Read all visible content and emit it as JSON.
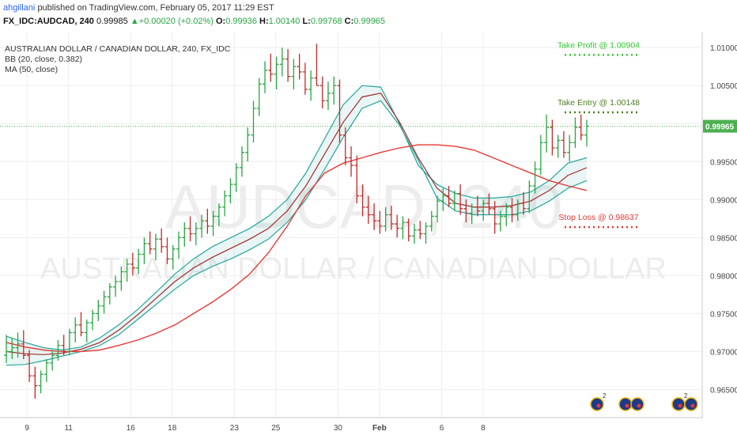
{
  "header": {
    "user": "ahgillani",
    "published": "published on TradingView.com, February 05, 2017 11:29 EST",
    "symbol": "FX_IDC:AUDCAD, 240",
    "last": "0.99985",
    "change": "+0.00020 (+0.02%)",
    "o_label": "O:",
    "o_val": "0.99936",
    "h_label": "H:",
    "h_val": "1.00140",
    "l_label": "L:",
    "l_val": "0.99768",
    "c_label": "C:",
    "c_val": "0.99965",
    "up_icon": "triangle-up-icon"
  },
  "legend": {
    "title": "AUSTRALIAN DOLLAR / CANADIAN DOLLAR, 240, FX_IDC",
    "bb": "BB (20, close, 0.382)",
    "ma": "MA (50, close)"
  },
  "watermark": {
    "big": "AUDCAD, 240",
    "small": "AUSTRALIAN DOLLAR / CANADIAN DOLLAR"
  },
  "colors": {
    "up": "#26a641",
    "down": "#c62828",
    "bb_outer": "#26a69a",
    "bb_mid": "#a52a2a",
    "ma": "#e53935",
    "take_profit": "#2ecc2e",
    "take_entry": "#4e7d1f",
    "stop_loss": "#e53935",
    "price_tag": "#4caf50"
  },
  "annotations": [
    {
      "label": "Take Profit @ 1.00904",
      "price": 1.00904,
      "color": "take_profit"
    },
    {
      "label": "Take Entry @ 1.00148",
      "price": 1.00148,
      "color": "take_entry"
    },
    {
      "label": "Stop Loss @ 0.98637",
      "price": 0.98637,
      "color": "stop_loss"
    }
  ],
  "price_tag": "0.99965",
  "chart_data": {
    "type": "ohlc",
    "title": "AUSTRALIAN DOLLAR / CANADIAN DOLLAR, 240, FX_IDC",
    "xlabel": "",
    "ylabel": "",
    "ylim": [
      0.9613,
      1.0121
    ],
    "y_ticks": [
      "1.01000",
      "1.00500",
      "1.00000",
      "0.99500",
      "0.99000",
      "0.98500",
      "0.98000",
      "0.97500",
      "0.97000",
      "0.96500"
    ],
    "x_ticks": [
      "9",
      "11",
      "16",
      "18",
      "23",
      "25",
      "30",
      "Feb",
      "6",
      "8"
    ],
    "grid": true,
    "current_price": 0.99965,
    "bars": [
      [
        0.9695,
        0.9722,
        0.9685,
        0.97
      ],
      [
        0.97,
        0.9718,
        0.969,
        0.9705
      ],
      [
        0.9705,
        0.9725,
        0.9692,
        0.971
      ],
      [
        0.971,
        0.9728,
        0.969,
        0.9695
      ],
      [
        0.9695,
        0.9702,
        0.966,
        0.9668
      ],
      [
        0.9668,
        0.968,
        0.9638,
        0.9655
      ],
      [
        0.9655,
        0.9675,
        0.9645,
        0.967
      ],
      [
        0.967,
        0.969,
        0.966,
        0.9685
      ],
      [
        0.9685,
        0.9702,
        0.9675,
        0.9695
      ],
      [
        0.9695,
        0.9715,
        0.9688,
        0.9708
      ],
      [
        0.9708,
        0.9722,
        0.9695,
        0.97
      ],
      [
        0.97,
        0.973,
        0.9695,
        0.9725
      ],
      [
        0.9725,
        0.9745,
        0.9712,
        0.9735
      ],
      [
        0.9735,
        0.9752,
        0.972,
        0.9725
      ],
      [
        0.9725,
        0.9742,
        0.9712,
        0.9738
      ],
      [
        0.9738,
        0.9755,
        0.9728,
        0.975
      ],
      [
        0.975,
        0.9768,
        0.974,
        0.976
      ],
      [
        0.976,
        0.978,
        0.975,
        0.9772
      ],
      [
        0.9772,
        0.979,
        0.9762,
        0.9785
      ],
      [
        0.9785,
        0.98,
        0.9772,
        0.9792
      ],
      [
        0.9792,
        0.9812,
        0.978,
        0.9805
      ],
      [
        0.9805,
        0.9822,
        0.9792,
        0.9815
      ],
      [
        0.9815,
        0.983,
        0.98,
        0.981
      ],
      [
        0.981,
        0.9835,
        0.9802,
        0.9828
      ],
      [
        0.9828,
        0.985,
        0.9815,
        0.9842
      ],
      [
        0.9842,
        0.9858,
        0.9828,
        0.9835
      ],
      [
        0.9835,
        0.9855,
        0.982,
        0.9848
      ],
      [
        0.9848,
        0.9862,
        0.983,
        0.9838
      ],
      [
        0.9838,
        0.985,
        0.9815,
        0.9822
      ],
      [
        0.9822,
        0.984,
        0.9808,
        0.9835
      ],
      [
        0.9835,
        0.9858,
        0.9822,
        0.985
      ],
      [
        0.985,
        0.987,
        0.9838,
        0.9862
      ],
      [
        0.9862,
        0.9878,
        0.9845,
        0.9855
      ],
      [
        0.9855,
        0.987,
        0.984,
        0.9862
      ],
      [
        0.9862,
        0.988,
        0.985,
        0.9872
      ],
      [
        0.9872,
        0.9888,
        0.9855,
        0.9865
      ],
      [
        0.9865,
        0.9885,
        0.9852,
        0.9878
      ],
      [
        0.9878,
        0.9895,
        0.9865,
        0.989
      ],
      [
        0.989,
        0.9912,
        0.9878,
        0.9905
      ],
      [
        0.9905,
        0.9928,
        0.9895,
        0.992
      ],
      [
        0.992,
        0.9948,
        0.991,
        0.9942
      ],
      [
        0.9942,
        0.997,
        0.993,
        0.9962
      ],
      [
        0.9962,
        0.9995,
        0.995,
        0.9985
      ],
      [
        0.9985,
        1.003,
        0.9975,
        1.002
      ],
      [
        1.002,
        1.006,
        1.001,
        1.0052
      ],
      [
        1.0052,
        1.0082,
        1.004,
        1.007
      ],
      [
        1.007,
        1.0092,
        1.0055,
        1.0065
      ],
      [
        1.0065,
        1.0088,
        1.0045,
        1.0078
      ],
      [
        1.0078,
        1.01,
        1.0062,
        1.0085
      ],
      [
        1.0085,
        1.0098,
        1.0055,
        1.0062
      ],
      [
        1.0062,
        1.0085,
        1.0045,
        1.0075
      ],
      [
        1.0075,
        1.0092,
        1.0058,
        1.0068
      ],
      [
        1.0068,
        1.008,
        1.0038,
        1.0045
      ],
      [
        1.0045,
        1.007,
        1.003,
        1.006
      ],
      [
        1.006,
        1.0105,
        1.005,
        1.005
      ],
      [
        1.005,
        1.0062,
        1.002,
        1.003
      ],
      [
        1.003,
        1.0055,
        1.0018,
        1.004
      ],
      [
        1.004,
        1.0062,
        1.0025,
        1.005
      ],
      [
        1.005,
        1.0058,
        0.9975,
        0.9985
      ],
      [
        0.9985,
        0.9995,
        0.9945,
        0.9955
      ],
      [
        0.9955,
        0.997,
        0.993,
        0.9945
      ],
      [
        0.9945,
        0.9958,
        0.9895,
        0.9905
      ],
      [
        0.9905,
        0.992,
        0.9878,
        0.989
      ],
      [
        0.989,
        0.9905,
        0.9868,
        0.988
      ],
      [
        0.988,
        0.9895,
        0.986,
        0.9872
      ],
      [
        0.9872,
        0.9885,
        0.9855,
        0.9865
      ],
      [
        0.9865,
        0.989,
        0.9858,
        0.988
      ],
      [
        0.988,
        0.9892,
        0.986,
        0.9868
      ],
      [
        0.9868,
        0.988,
        0.985,
        0.9862
      ],
      [
        0.9862,
        0.9878,
        0.9848,
        0.987
      ],
      [
        0.987,
        0.9875,
        0.9845,
        0.9852
      ],
      [
        0.9852,
        0.9868,
        0.9842,
        0.986
      ],
      [
        0.986,
        0.9872,
        0.9848,
        0.9855
      ],
      [
        0.9855,
        0.987,
        0.9842,
        0.9865
      ],
      [
        0.9865,
        0.9885,
        0.9858,
        0.9878
      ],
      [
        0.9878,
        0.9905,
        0.987,
        0.9898
      ],
      [
        0.9898,
        0.9915,
        0.9885,
        0.9905
      ],
      [
        0.9905,
        0.9918,
        0.989,
        0.9895
      ],
      [
        0.9895,
        0.9912,
        0.9885,
        0.9908
      ],
      [
        0.9908,
        0.992,
        0.988,
        0.9888
      ],
      [
        0.9888,
        0.99,
        0.987,
        0.9882
      ],
      [
        0.9882,
        0.9895,
        0.9868,
        0.989
      ],
      [
        0.989,
        0.9905,
        0.9878,
        0.9885
      ],
      [
        0.9885,
        0.99,
        0.9872,
        0.9895
      ],
      [
        0.9895,
        0.9908,
        0.988,
        0.9888
      ],
      [
        0.9888,
        0.9898,
        0.9855,
        0.9868
      ],
      [
        0.9868,
        0.9885,
        0.9858,
        0.9878
      ],
      [
        0.9878,
        0.9895,
        0.9865,
        0.989
      ],
      [
        0.989,
        0.9902,
        0.987,
        0.988
      ],
      [
        0.988,
        0.99,
        0.9872,
        0.9895
      ],
      [
        0.9895,
        0.991,
        0.988,
        0.9888
      ],
      [
        0.9888,
        0.9925,
        0.9882,
        0.9918
      ],
      [
        0.9918,
        0.995,
        0.9908,
        0.994
      ],
      [
        0.994,
        0.9985,
        0.9932,
        0.9975
      ],
      [
        0.9975,
        1.0012,
        0.9962,
        0.9995
      ],
      [
        0.9995,
        1.0005,
        0.9958,
        0.9968
      ],
      [
        0.9968,
        0.9985,
        0.9955,
        0.9978
      ],
      [
        0.9978,
        0.999,
        0.9955,
        0.9962
      ],
      [
        0.9962,
        0.9985,
        0.995,
        0.9975
      ],
      [
        0.9975,
        1.0008,
        0.9968,
        0.9995
      ],
      [
        0.9995,
        1.0012,
        0.9978,
        0.9985
      ],
      [
        0.9985,
        1.0005,
        0.997,
        0.99965
      ]
    ],
    "series": [
      {
        "name": "BB upper",
        "values": [
          0.972,
          0.9712,
          0.9705,
          0.9702,
          0.9706,
          0.9718,
          0.9735,
          0.9755,
          0.9778,
          0.9802,
          0.9822,
          0.9838,
          0.985,
          0.9862,
          0.9878,
          0.99,
          0.9935,
          0.998,
          1.0025,
          1.005,
          1.0048,
          1.0,
          0.9945,
          0.992,
          0.9908,
          0.9902,
          0.9902,
          0.9904,
          0.991,
          0.9925,
          0.9948,
          0.9955
        ]
      },
      {
        "name": "BB basis",
        "values": [
          0.97,
          0.9697,
          0.9696,
          0.9698,
          0.9703,
          0.9712,
          0.9728,
          0.9748,
          0.977,
          0.9792,
          0.981,
          0.9824,
          0.9836,
          0.9848,
          0.9862,
          0.9885,
          0.9918,
          0.996,
          1.0002,
          1.0035,
          1.004,
          1.0002,
          0.9955,
          0.9915,
          0.9895,
          0.989,
          0.989,
          0.9892,
          0.9898,
          0.9912,
          0.9932,
          0.9942
        ]
      },
      {
        "name": "BB lower",
        "values": [
          0.9682,
          0.9683,
          0.9688,
          0.9694,
          0.97,
          0.9708,
          0.9722,
          0.9742,
          0.9762,
          0.9782,
          0.98,
          0.9812,
          0.9822,
          0.9834,
          0.9848,
          0.987,
          0.99,
          0.994,
          0.9982,
          1.002,
          1.003,
          0.9998,
          0.9952,
          0.9902,
          0.9885,
          0.988,
          0.988,
          0.988,
          0.9885,
          0.9898,
          0.9915,
          0.9925
        ]
      },
      {
        "name": "MA 50",
        "values": [
          0.9712,
          0.9706,
          0.9702,
          0.97,
          0.97,
          0.9702,
          0.9708,
          0.9715,
          0.9724,
          0.9735,
          0.975,
          0.9765,
          0.9782,
          0.9802,
          0.983,
          0.9865,
          0.9905,
          0.9935,
          0.9948,
          0.9955,
          0.9962,
          0.9968,
          0.9972,
          0.9972,
          0.997,
          0.9965,
          0.9955,
          0.9945,
          0.9935,
          0.9925,
          0.9918,
          0.9912
        ]
      }
    ]
  }
}
